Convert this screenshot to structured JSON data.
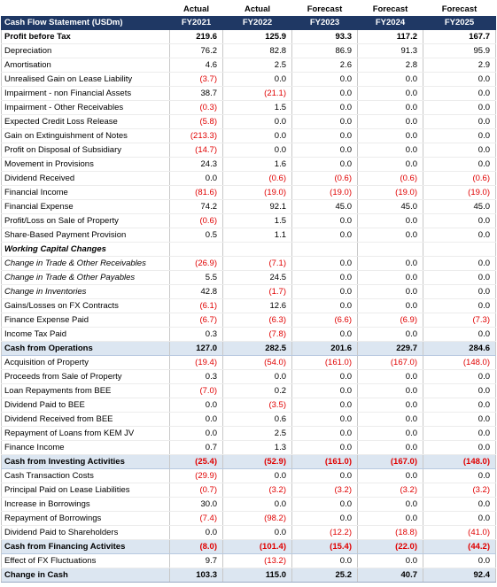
{
  "header": {
    "title": "Cash Flow Statement (USDm)",
    "columns": [
      {
        "status": "Actual",
        "year": "FY2021"
      },
      {
        "status": "Actual",
        "year": "FY2022"
      },
      {
        "status": "Forecast",
        "year": "FY2023"
      },
      {
        "status": "Forecast",
        "year": "FY2024"
      },
      {
        "status": "Forecast",
        "year": "FY2025"
      }
    ]
  },
  "table": {
    "rows": [
      {
        "label": "Profit before Tax",
        "values": [
          "219.6",
          "125.9",
          "93.3",
          "117.2",
          "167.7"
        ]
      },
      {
        "label": "Depreciation",
        "values": [
          "76.2",
          "82.8",
          "86.9",
          "91.3",
          "95.9"
        ]
      },
      {
        "label": "Amortisation",
        "values": [
          "4.6",
          "2.5",
          "2.6",
          "2.8",
          "2.9"
        ]
      },
      {
        "label": "Unrealised Gain on Lease Liability",
        "values": [
          "(3.7)",
          "0.0",
          "0.0",
          "0.0",
          "0.0"
        ]
      },
      {
        "label": "Impairment - non Financial Assets",
        "values": [
          "38.7",
          "(21.1)",
          "0.0",
          "0.0",
          "0.0"
        ]
      },
      {
        "label": "Impairment - Other Receivables",
        "values": [
          "(0.3)",
          "1.5",
          "0.0",
          "0.0",
          "0.0"
        ]
      },
      {
        "label": "Expected Credit Loss Release",
        "values": [
          "(5.8)",
          "0.0",
          "0.0",
          "0.0",
          "0.0"
        ]
      },
      {
        "label": "Gain on Extinguishment of Notes",
        "values": [
          "(213.3)",
          "0.0",
          "0.0",
          "0.0",
          "0.0"
        ]
      },
      {
        "label": "Profit on Disposal of Subsidiary",
        "values": [
          "(14.7)",
          "0.0",
          "0.0",
          "0.0",
          "0.0"
        ]
      },
      {
        "label": "Movement in Provisions",
        "values": [
          "24.3",
          "1.6",
          "0.0",
          "0.0",
          "0.0"
        ]
      },
      {
        "label": "Dividend Received",
        "values": [
          "0.0",
          "(0.6)",
          "(0.6)",
          "(0.6)",
          "(0.6)"
        ]
      },
      {
        "label": "Financial Income",
        "values": [
          "(81.6)",
          "(19.0)",
          "(19.0)",
          "(19.0)",
          "(19.0)"
        ]
      },
      {
        "label": "Financial Expense",
        "values": [
          "74.2",
          "92.1",
          "45.0",
          "45.0",
          "45.0"
        ]
      },
      {
        "label": "Profit/Loss on Sale of Property",
        "values": [
          "(0.6)",
          "1.5",
          "0.0",
          "0.0",
          "0.0"
        ]
      },
      {
        "label": "Share-Based Payment Provision",
        "values": [
          "0.5",
          "1.1",
          "0.0",
          "0.0",
          "0.0"
        ]
      },
      {
        "label": "Working Capital Changes",
        "values": []
      },
      {
        "label": "Change in Trade & Other Receivables",
        "values": [
          "(26.9)",
          "(7.1)",
          "0.0",
          "0.0",
          "0.0"
        ]
      },
      {
        "label": "Change in Trade & Other Payables",
        "values": [
          "5.5",
          "24.5",
          "0.0",
          "0.0",
          "0.0"
        ]
      },
      {
        "label": "Change in Inventories",
        "values": [
          "42.8",
          "(1.7)",
          "0.0",
          "0.0",
          "0.0"
        ]
      },
      {
        "label": "Gains/Losses on FX Contracts",
        "values": [
          "(6.1)",
          "12.6",
          "0.0",
          "0.0",
          "0.0"
        ]
      },
      {
        "label": "Finance Expense Paid",
        "values": [
          "(6.7)",
          "(6.3)",
          "(6.6)",
          "(6.9)",
          "(7.3)"
        ]
      },
      {
        "label": "Income Tax Paid",
        "values": [
          "0.3",
          "(7.8)",
          "0.0",
          "0.0",
          "0.0"
        ]
      },
      {
        "label": "Cash from Operations",
        "values": [
          "127.0",
          "282.5",
          "201.6",
          "229.7",
          "284.6"
        ]
      },
      {
        "label": "Acquisition of Property",
        "values": [
          "(19.4)",
          "(54.0)",
          "(161.0)",
          "(167.0)",
          "(148.0)"
        ]
      },
      {
        "label": "Proceeds from Sale of Property",
        "values": [
          "0.3",
          "0.0",
          "0.0",
          "0.0",
          "0.0"
        ]
      },
      {
        "label": "Loan Repayments from BEE",
        "values": [
          "(7.0)",
          "0.2",
          "0.0",
          "0.0",
          "0.0"
        ]
      },
      {
        "label": "Dividend Paid to BEE",
        "values": [
          "0.0",
          "(3.5)",
          "0.0",
          "0.0",
          "0.0"
        ]
      },
      {
        "label": "Dividend Received from BEE",
        "values": [
          "0.0",
          "0.6",
          "0.0",
          "0.0",
          "0.0"
        ]
      },
      {
        "label": "Repayment of Loans from KEM JV",
        "values": [
          "0.0",
          "2.5",
          "0.0",
          "0.0",
          "0.0"
        ]
      },
      {
        "label": "Finance Income",
        "values": [
          "0.7",
          "1.3",
          "0.0",
          "0.0",
          "0.0"
        ]
      },
      {
        "label": "Cash from Investing Activities",
        "values": [
          "(25.4)",
          "(52.9)",
          "(161.0)",
          "(167.0)",
          "(148.0)"
        ]
      },
      {
        "label": "Cash Transaction Costs",
        "values": [
          "(29.9)",
          "0.0",
          "0.0",
          "0.0",
          "0.0"
        ]
      },
      {
        "label": "Principal Paid on Lease Liabilities",
        "values": [
          "(0.7)",
          "(3.2)",
          "(3.2)",
          "(3.2)",
          "(3.2)"
        ]
      },
      {
        "label": "Increase in Borrowings",
        "values": [
          "30.0",
          "0.0",
          "0.0",
          "0.0",
          "0.0"
        ]
      },
      {
        "label": "Repayment of Borrowings",
        "values": [
          "(7.4)",
          "(98.2)",
          "0.0",
          "0.0",
          "0.0"
        ]
      },
      {
        "label": "Dividend Paid to Shareholders",
        "values": [
          "0.0",
          "0.0",
          "(12.2)",
          "(18.8)",
          "(41.0)"
        ]
      },
      {
        "label": "Cash from Financing Activites",
        "values": [
          "(8.0)",
          "(101.4)",
          "(15.4)",
          "(22.0)",
          "(44.2)"
        ]
      },
      {
        "label": "Effect of FX Fluctuations",
        "values": [
          "9.7",
          "(13.2)",
          "0.0",
          "0.0",
          "0.0"
        ]
      },
      {
        "label": "Change in Cash",
        "values": [
          "103.3",
          "115.0",
          "25.2",
          "40.7",
          "92.4"
        ]
      }
    ]
  }
}
